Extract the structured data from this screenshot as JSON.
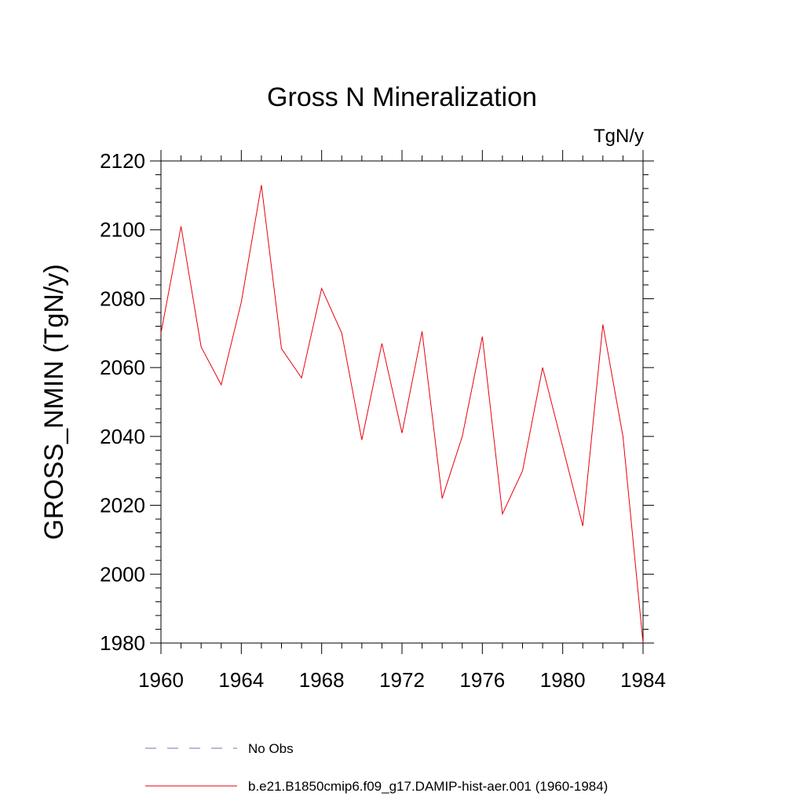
{
  "chart_data": {
    "type": "line",
    "title": "Gross N Mineralization",
    "units_label": "TgN/y",
    "ylabel": "GROSS_NMIN  (TgN/y)",
    "xlabel": "",
    "xlim": [
      1960,
      1984
    ],
    "ylim": [
      1980,
      2120
    ],
    "x_ticks": [
      1960,
      1964,
      1968,
      1972,
      1976,
      1980,
      1984
    ],
    "y_ticks": [
      1980,
      2000,
      2020,
      2040,
      2060,
      2080,
      2100,
      2120
    ],
    "grid": false,
    "legend_position": "bottom",
    "series": [
      {
        "name": "b.e21.B1850cmip6.f09_g17.DAMIP-hist-aer.001 (1960-1984)",
        "color": "#e8000b",
        "style": "solid",
        "x": [
          1960,
          1961,
          1962,
          1963,
          1964,
          1965,
          1966,
          1967,
          1968,
          1969,
          1970,
          1971,
          1972,
          1973,
          1974,
          1975,
          1976,
          1977,
          1978,
          1979,
          1980,
          1981,
          1982,
          1983,
          1984
        ],
        "values": [
          2070,
          2101,
          2066,
          2055,
          2079,
          2113,
          2065.5,
          2057,
          2083,
          2070,
          2039,
          2067,
          2041,
          2070.5,
          2022,
          2040,
          2069,
          2017.5,
          2030,
          2060,
          2037,
          2014,
          2072.5,
          2040,
          1980
        ]
      },
      {
        "name": "No Obs",
        "color": "#7b6fb0",
        "style": "dashed",
        "x": [],
        "values": []
      }
    ]
  }
}
